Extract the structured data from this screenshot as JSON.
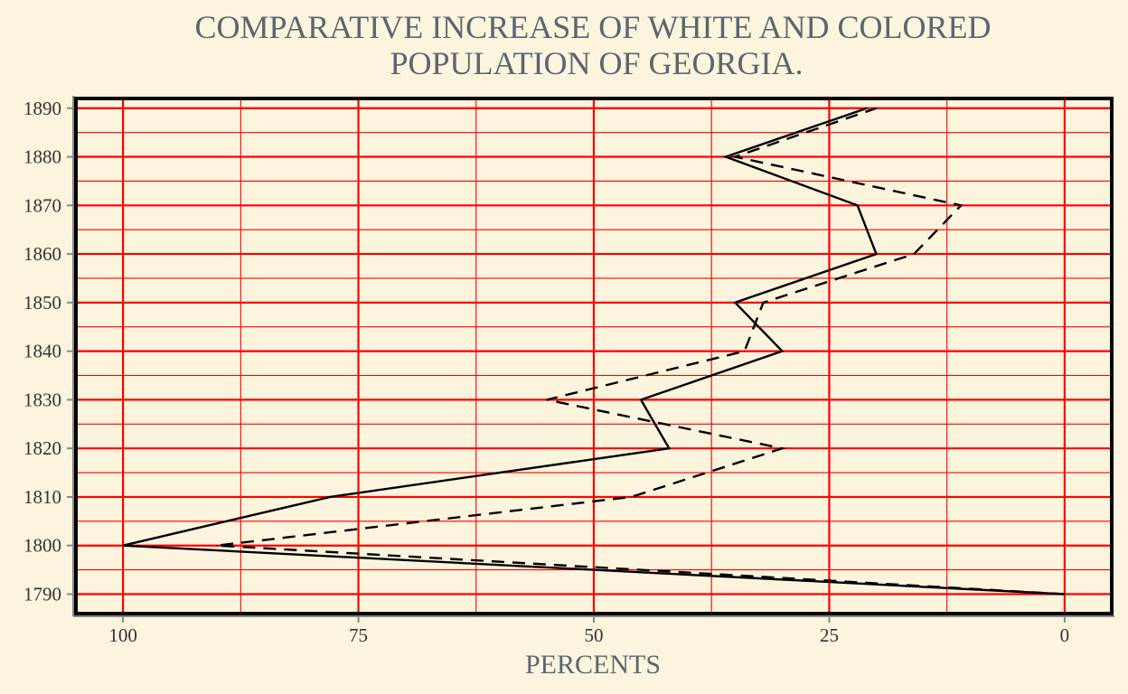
{
  "chart_data": {
    "type": "line",
    "title": "COMPARATIVE INCREASE OF WHITE AND COLORED",
    "subtitle": "POPULATION OF GEORGIA.",
    "xlabel": "PERCENTS",
    "ylabel": "",
    "xlim": [
      105,
      -5
    ],
    "ylim": [
      1786,
      1892
    ],
    "x_ticks": [
      100,
      75,
      50,
      25,
      0
    ],
    "x_tick_labels": [
      "100",
      "75",
      "50",
      "25",
      "0"
    ],
    "y_ticks": [
      1790,
      1800,
      1810,
      1820,
      1830,
      1840,
      1850,
      1860,
      1870,
      1880,
      1890
    ],
    "y_tick_labels": [
      "1890",
      "1880",
      "1870",
      "1860",
      "1850",
      "1840",
      "1830",
      "1820",
      "1810",
      "1800",
      "1790"
    ],
    "grid": true,
    "legend": "none",
    "series": [
      {
        "style": "solid",
        "points": [
          {
            "year": 1790,
            "percent": 0
          },
          {
            "year": 1800,
            "percent": 100
          },
          {
            "year": 1810,
            "percent": 78
          },
          {
            "year": 1820,
            "percent": 42
          },
          {
            "year": 1830,
            "percent": 45
          },
          {
            "year": 1840,
            "percent": 30
          },
          {
            "year": 1850,
            "percent": 35
          },
          {
            "year": 1860,
            "percent": 20
          },
          {
            "year": 1870,
            "percent": 22
          },
          {
            "year": 1880,
            "percent": 36
          },
          {
            "year": 1890,
            "percent": 21
          }
        ]
      },
      {
        "style": "dashed",
        "points": [
          {
            "year": 1790,
            "percent": 0
          },
          {
            "year": 1800,
            "percent": 90
          },
          {
            "year": 1810,
            "percent": 46
          },
          {
            "year": 1820,
            "percent": 30
          },
          {
            "year": 1830,
            "percent": 55
          },
          {
            "year": 1840,
            "percent": 34
          },
          {
            "year": 1850,
            "percent": 32
          },
          {
            "year": 1860,
            "percent": 16
          },
          {
            "year": 1870,
            "percent": 11
          },
          {
            "year": 1880,
            "percent": 35
          },
          {
            "year": 1890,
            "percent": 20
          }
        ]
      }
    ],
    "colors": {
      "background": "#fcf4dd",
      "grid": "#ff0000",
      "frame": "#000000",
      "line": "#000000",
      "title": "#5a6670",
      "tick": "#333333"
    }
  }
}
